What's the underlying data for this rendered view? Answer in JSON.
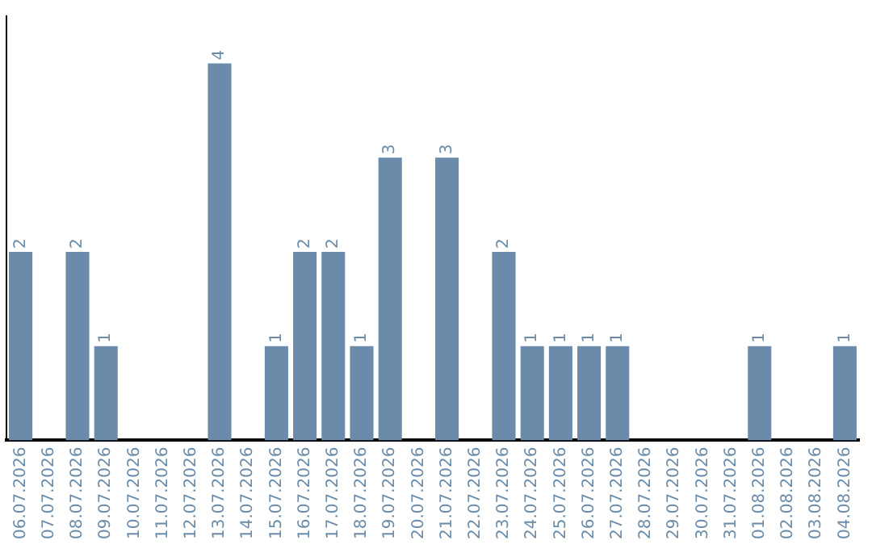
{
  "chart_data": {
    "type": "bar",
    "categories": [
      "06.07.2026",
      "07.07.2026",
      "08.07.2026",
      "09.07.2026",
      "10.07.2026",
      "11.07.2026",
      "12.07.2026",
      "13.07.2026",
      "14.07.2026",
      "15.07.2026",
      "16.07.2026",
      "17.07.2026",
      "18.07.2026",
      "19.07.2026",
      "20.07.2026",
      "21.07.2026",
      "22.07.2026",
      "23.07.2026",
      "24.07.2026",
      "25.07.2026",
      "26.07.2026",
      "27.07.2026",
      "28.07.2026",
      "29.07.2026",
      "30.07.2026",
      "31.07.2026",
      "01.08.2026",
      "02.08.2026",
      "03.08.2026",
      "04.08.2026"
    ],
    "values": [
      2,
      0,
      2,
      1,
      0,
      0,
      0,
      4,
      0,
      1,
      2,
      2,
      1,
      3,
      0,
      3,
      0,
      2,
      1,
      1,
      1,
      1,
      0,
      0,
      0,
      0,
      1,
      0,
      0,
      1
    ],
    "value_labels": [
      "2",
      null,
      "2",
      "1",
      null,
      null,
      null,
      "4",
      null,
      "1",
      "2",
      "2",
      "1",
      "3",
      null,
      "3",
      null,
      "2",
      "1",
      "1",
      "1",
      "1",
      null,
      null,
      null,
      null,
      "1",
      null,
      null,
      "1"
    ],
    "color": "#6a8caa",
    "grid": false,
    "legend": false
  }
}
